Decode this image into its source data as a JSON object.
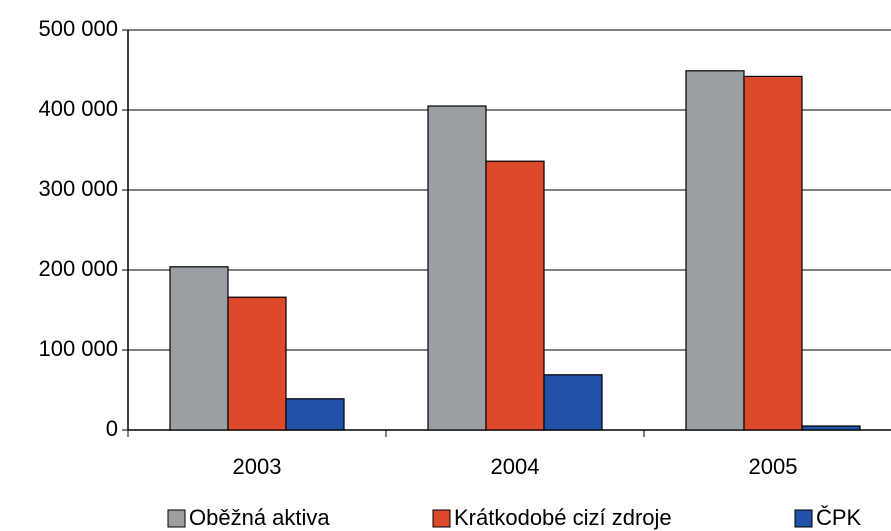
{
  "chart_data": {
    "type": "bar",
    "categories": [
      "2003",
      "2004",
      "2005"
    ],
    "series": [
      {
        "name": "Oběžná aktiva",
        "color": "#9b9fa4",
        "values": [
          204000,
          405000,
          449000
        ]
      },
      {
        "name": "Krátkodobé cizí zdroje",
        "color": "#dc4a2b",
        "values": [
          166000,
          336000,
          442000
        ]
      },
      {
        "name": "ČPK",
        "color": "#2251a8",
        "values": [
          39000,
          69000,
          5000
        ]
      }
    ],
    "ylim": [
      0,
      500000
    ],
    "yticks": [
      0,
      {
        "value": 100000,
        "label": "100 000"
      },
      {
        "value": 200000,
        "label": "200 000"
      },
      {
        "value": 300000,
        "label": "300 000"
      },
      {
        "value": 400000,
        "label": "400 000"
      },
      {
        "value": 500000,
        "label": "500 000"
      }
    ],
    "grid": true,
    "legend": "bottom"
  }
}
